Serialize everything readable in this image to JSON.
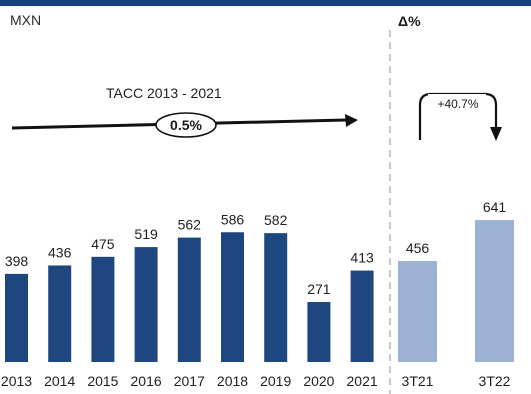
{
  "unit_label": "MXN",
  "delta_header": "Δ%",
  "tacc": {
    "title": "TACC 2013 - 2021",
    "value_label": "0.5%"
  },
  "callout_label": "+40.7%",
  "colors": {
    "top_band": "#13407a",
    "annual_bar": "#1f477f",
    "quarter_bar": "#9cb2d5",
    "divider": "#b5b5b5"
  },
  "chart_data": {
    "type": "bar",
    "title": "",
    "ylabel": "MXN",
    "annual": {
      "categories": [
        "2013",
        "2014",
        "2015",
        "2016",
        "2017",
        "2018",
        "2019",
        "2020",
        "2021"
      ],
      "values": [
        398,
        436,
        475,
        519,
        562,
        586,
        582,
        271,
        413
      ],
      "value_labels": [
        "398",
        "436",
        "475",
        "519",
        "562",
        "586",
        "582",
        "271",
        "413"
      ]
    },
    "quarterly": {
      "categories": [
        "3T21",
        "3T22"
      ],
      "values": [
        456,
        641
      ],
      "value_labels": [
        "456",
        "641"
      ]
    },
    "annotations": [
      {
        "type": "cagr",
        "label": "TACC 2013 - 2021",
        "value": "0.5%"
      },
      {
        "type": "change",
        "label": "+40.7%"
      }
    ]
  }
}
